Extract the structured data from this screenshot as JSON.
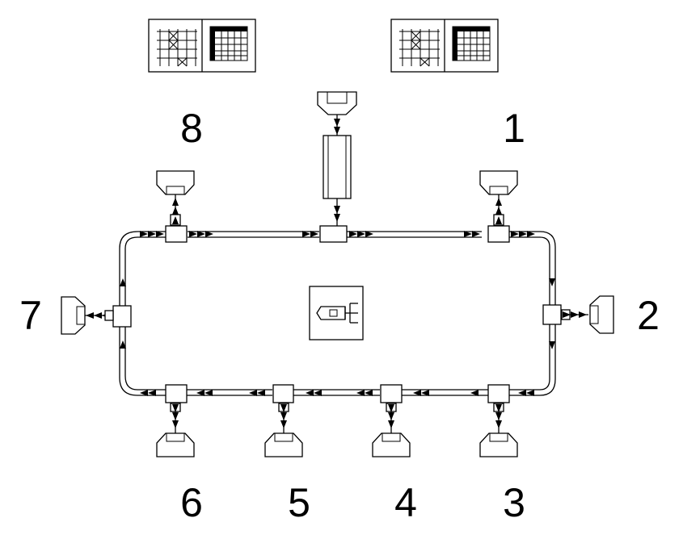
{
  "stations": [
    {
      "id": "1",
      "label": "1"
    },
    {
      "id": "2",
      "label": "2"
    },
    {
      "id": "3",
      "label": "3"
    },
    {
      "id": "4",
      "label": "4"
    },
    {
      "id": "5",
      "label": "5"
    },
    {
      "id": "6",
      "label": "6"
    },
    {
      "id": "7",
      "label": "7"
    },
    {
      "id": "8",
      "label": "8"
    }
  ],
  "colors": {
    "line": "#000000",
    "background": "#ffffff"
  },
  "icons": {
    "grid_panels": "grid-panel-icon",
    "feeder": "feeder-hopper-icon",
    "central_robot": "robot-controller-icon",
    "workstation": "workstation-gripper-icon"
  }
}
